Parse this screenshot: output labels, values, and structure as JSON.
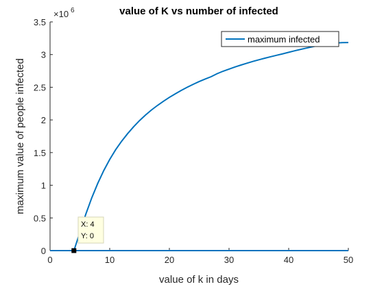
{
  "chart_data": {
    "type": "line",
    "title": "value of K vs number of infected",
    "xlabel": "value of k in days",
    "ylabel": "maximum value of people infected",
    "exponent_base": "×10",
    "exponent_power": "6",
    "xlim": [
      0,
      50
    ],
    "ylim": [
      0,
      3500000
    ],
    "xticks": [
      0,
      10,
      20,
      30,
      40,
      50
    ],
    "xtick_labels": [
      "0",
      "10",
      "20",
      "30",
      "40",
      "50"
    ],
    "yticks": [
      0,
      500000,
      1000000,
      1500000,
      2000000,
      2500000,
      3000000,
      3500000
    ],
    "ytick_labels": [
      "0",
      "0.5",
      "1",
      "1.5",
      "2",
      "2.5",
      "3",
      "3.5"
    ],
    "grid": false,
    "legend_position": "top-right",
    "series": [
      {
        "name": "maximum infected",
        "color": "#0072BD",
        "x": [
          4,
          5,
          6,
          7,
          8,
          9,
          10,
          11,
          12,
          13,
          14,
          15,
          16,
          17,
          18,
          19,
          20,
          21,
          22,
          23,
          24,
          25,
          26,
          27,
          28,
          29,
          30,
          31,
          32,
          33,
          34,
          35,
          36,
          37,
          38,
          39,
          40,
          41,
          42,
          43,
          44,
          45,
          46,
          47,
          48,
          49,
          50
        ],
        "y": [
          0,
          280000,
          560000,
          810000,
          1030000,
          1225000,
          1395000,
          1545000,
          1675000,
          1790000,
          1895000,
          1990000,
          2075000,
          2152000,
          2222000,
          2286000,
          2345000,
          2400000,
          2452000,
          2500000,
          2545000,
          2587000,
          2626000,
          2662000,
          2708000,
          2745000,
          2778000,
          2810000,
          2840000,
          2868000,
          2895000,
          2920000,
          2945000,
          2968000,
          2990000,
          3012000,
          3035000,
          3058000,
          3080000,
          3100000,
          3120000,
          3140000,
          3155000,
          3168000,
          3178000,
          3183000,
          3185000
        ]
      },
      {
        "name": "maximum infected",
        "color": "#0072BD",
        "x": [
          0,
          50
        ],
        "y": [
          0,
          0
        ]
      }
    ],
    "datatip": {
      "x": 4,
      "y": 0,
      "x_text": "X: 4",
      "y_text": "Y: 0"
    }
  }
}
